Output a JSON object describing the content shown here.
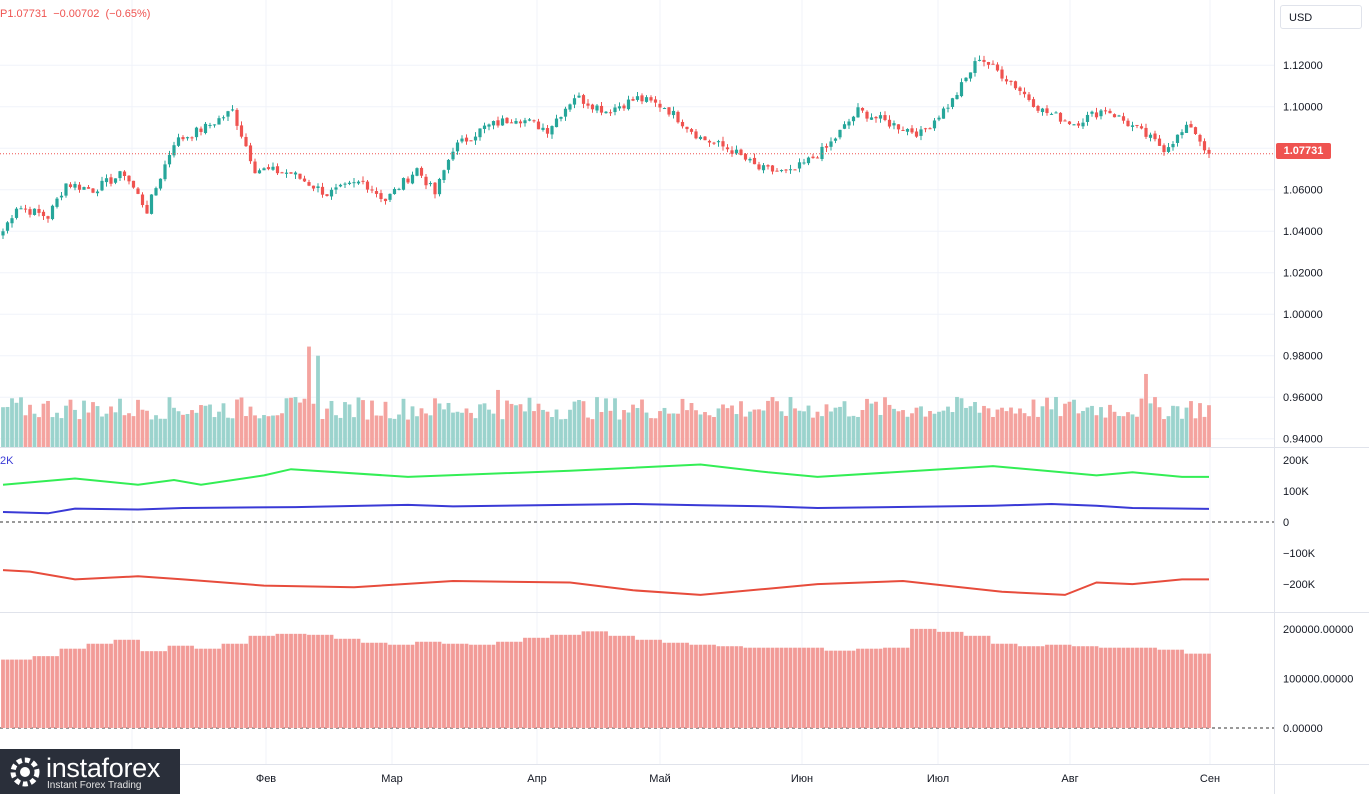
{
  "header": {
    "ohlc_text": "P1.07731  −0.00702  (−0.65%)",
    "currency_button": "USD"
  },
  "logo": {
    "name": "instaforex",
    "tagline": "Instant Forex Trading"
  },
  "colors": {
    "up": "#26a69a",
    "down": "#ef5350",
    "vol_up": "#9bd3cd",
    "vol_down": "#f4a39f",
    "green_line": "#33ee55",
    "blue_line": "#3a3ad6",
    "red_line": "#e74c3c",
    "hist": "#f29b97"
  },
  "chart_data": [
    {
      "type": "candlestick",
      "title": "",
      "y_axis_ticks": [
        "1.12000",
        "1.10000",
        "1.08000",
        "1.06000",
        "1.04000",
        "1.02000",
        "1.00000",
        "0.98000",
        "0.96000",
        "0.94000"
      ],
      "ylim": [
        0.936,
        1.136
      ],
      "last_price": 1.07731,
      "last_price_label": "1.07731",
      "x_axis_labels": [
        "Фев",
        "Мар",
        "Апр",
        "Май",
        "Июн",
        "Июл",
        "Авг",
        "Сен"
      ],
      "anchors": [
        [
          0,
          1.04
        ],
        [
          3,
          1.052
        ],
        [
          10,
          1.047
        ],
        [
          14,
          1.063
        ],
        [
          20,
          1.06
        ],
        [
          27,
          1.068
        ],
        [
          32,
          1.05
        ],
        [
          38,
          1.083
        ],
        [
          45,
          1.09
        ],
        [
          51,
          1.098
        ],
        [
          56,
          1.07
        ],
        [
          64,
          1.068
        ],
        [
          72,
          1.058
        ],
        [
          80,
          1.064
        ],
        [
          85,
          1.055
        ],
        [
          92,
          1.07
        ],
        [
          96,
          1.058
        ],
        [
          100,
          1.08
        ],
        [
          107,
          1.09
        ],
        [
          114,
          1.095
        ],
        [
          121,
          1.089
        ],
        [
          127,
          1.105
        ],
        [
          134,
          1.098
        ],
        [
          141,
          1.104
        ],
        [
          147,
          1.1
        ],
        [
          155,
          1.085
        ],
        [
          162,
          1.079
        ],
        [
          168,
          1.07
        ],
        [
          175,
          1.068
        ],
        [
          183,
          1.08
        ],
        [
          190,
          1.098
        ],
        [
          197,
          1.092
        ],
        [
          204,
          1.087
        ],
        [
          211,
          1.103
        ],
        [
          217,
          1.124
        ],
        [
          224,
          1.112
        ],
        [
          231,
          1.098
        ],
        [
          238,
          1.092
        ],
        [
          245,
          1.099
        ],
        [
          252,
          1.089
        ],
        [
          258,
          1.08
        ],
        [
          264,
          1.091
        ],
        [
          268,
          1.077
        ]
      ]
    },
    {
      "type": "bar",
      "name": "volume",
      "bars": 269,
      "base": 0.12,
      "amplitude": 0.1,
      "spikes": [
        [
          68,
          0.44
        ],
        [
          70,
          0.4
        ],
        [
          110,
          0.25
        ],
        [
          254,
          0.32
        ]
      ]
    },
    {
      "type": "line",
      "name": "cot_positions",
      "y_axis_ticks": [
        "200K",
        "100K",
        "0",
        "−100K",
        "−200K"
      ],
      "ylim": [
        -290000,
        235000
      ],
      "series": [
        {
          "name": "",
          "color": "green",
          "steps": [
            [
              0,
              120000
            ],
            [
              16,
              140000
            ],
            [
              30,
              120000
            ],
            [
              38,
              135000
            ],
            [
              44,
              120000
            ],
            [
              58,
              150000
            ],
            [
              64,
              170000
            ],
            [
              90,
              145000
            ],
            [
              126,
              165000
            ],
            [
              155,
              185000
            ],
            [
              170,
              160000
            ],
            [
              181,
              145000
            ],
            [
              220,
              180000
            ],
            [
              243,
              150000
            ],
            [
              251,
              160000
            ],
            [
              262,
              145000
            ],
            [
              268,
              145000
            ]
          ]
        },
        {
          "name": "",
          "color": "blue",
          "steps": [
            [
              0,
              32000
            ],
            [
              10,
              28000
            ],
            [
              16,
              43000
            ],
            [
              30,
              40000
            ],
            [
              40,
              45000
            ],
            [
              65,
              48000
            ],
            [
              90,
              55000
            ],
            [
              100,
              50000
            ],
            [
              140,
              58000
            ],
            [
              155,
              54000
            ],
            [
              170,
              50000
            ],
            [
              181,
              45000
            ],
            [
              220,
              52000
            ],
            [
              233,
              58000
            ],
            [
              243,
              52000
            ],
            [
              251,
              45000
            ],
            [
              268,
              42000
            ]
          ]
        },
        {
          "name": "",
          "color": "red",
          "steps": [
            [
              0,
              -155000
            ],
            [
              6,
              -160000
            ],
            [
              16,
              -185000
            ],
            [
              30,
              -175000
            ],
            [
              40,
              -185000
            ],
            [
              58,
              -205000
            ],
            [
              78,
              -210000
            ],
            [
              100,
              -190000
            ],
            [
              126,
              -195000
            ],
            [
              140,
              -220000
            ],
            [
              155,
              -235000
            ],
            [
              170,
              -215000
            ],
            [
              181,
              -200000
            ],
            [
              200,
              -190000
            ],
            [
              222,
              -225000
            ],
            [
              236,
              -235000
            ],
            [
              243,
              -195000
            ],
            [
              251,
              -200000
            ],
            [
              262,
              -185000
            ],
            [
              268,
              -185000
            ]
          ]
        }
      ]
    },
    {
      "type": "bar",
      "name": "open_interest",
      "y_axis_ticks": [
        "200000.00000",
        "100000.00000",
        "0.00000"
      ],
      "ylim": [
        0,
        230000
      ],
      "weekly_values": [
        138000,
        145000,
        160000,
        170000,
        178000,
        155000,
        166000,
        160000,
        170000,
        186000,
        190000,
        188000,
        180000,
        172000,
        168000,
        174000,
        170000,
        168000,
        174000,
        182000,
        188000,
        195000,
        186000,
        178000,
        172000,
        168000,
        165000,
        162000,
        162000,
        162000,
        156000,
        160000,
        162000,
        200000,
        194000,
        186000,
        170000,
        165000,
        168000,
        165000,
        162000,
        162000,
        158000,
        150000
      ]
    }
  ]
}
